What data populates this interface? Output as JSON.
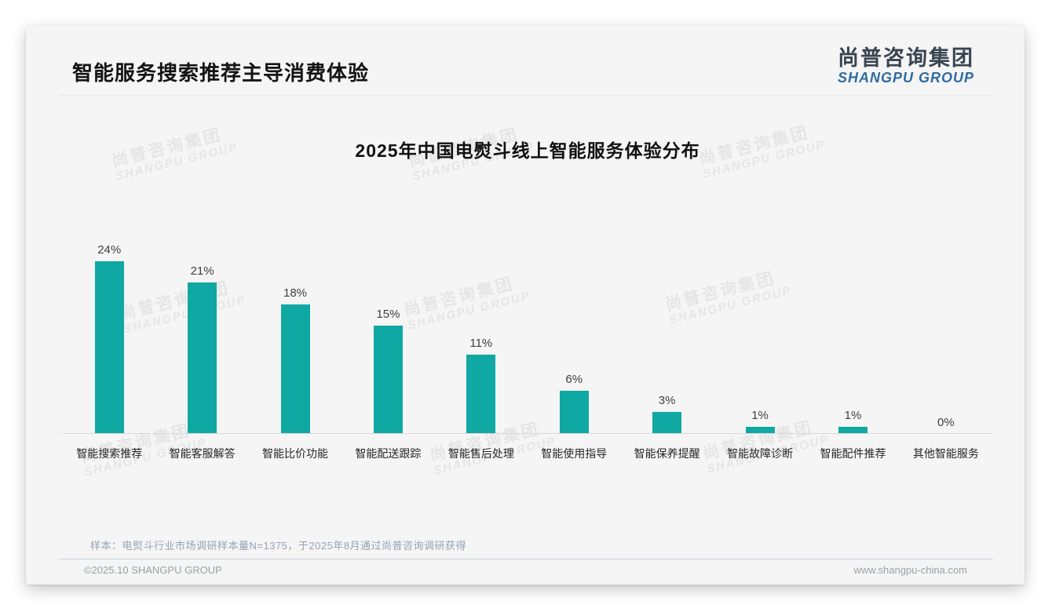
{
  "page": {
    "title": "智能服务搜索推荐主导消费体验",
    "logo": {
      "cn": "尚普咨询集团",
      "en": "SHANGPU GROUP"
    },
    "watermark": {
      "cn": "尚普咨询集团",
      "en": "SHANGPU GROUP"
    },
    "note": "样本：电熨斗行业市场调研样本量N=1375，于2025年8月通过尚普咨询调研获得",
    "footer": {
      "copyright": "©2025.10 SHANGPU GROUP",
      "website": "www.shangpu-china.com"
    },
    "colors": {
      "bar": "#10a8a2",
      "brand_blue": "#2e6ba3",
      "brand_dark": "#3a4551"
    }
  },
  "chart_data": {
    "type": "bar",
    "title": "2025年中国电熨斗线上智能服务体验分布",
    "categories": [
      "智能搜索推荐",
      "智能客服解答",
      "智能比价功能",
      "智能配送跟踪",
      "智能售后处理",
      "智能使用指导",
      "智能保养提醒",
      "智能故障诊断",
      "智能配件推荐",
      "其他智能服务"
    ],
    "values": [
      24,
      21,
      18,
      15,
      11,
      6,
      3,
      1,
      1,
      0
    ],
    "unit": "%",
    "value_labels": true,
    "xlabel": "",
    "ylabel": "",
    "ylim": [
      0,
      26
    ],
    "grid": false,
    "legend": "none",
    "bar_color": "#10a8a2"
  }
}
